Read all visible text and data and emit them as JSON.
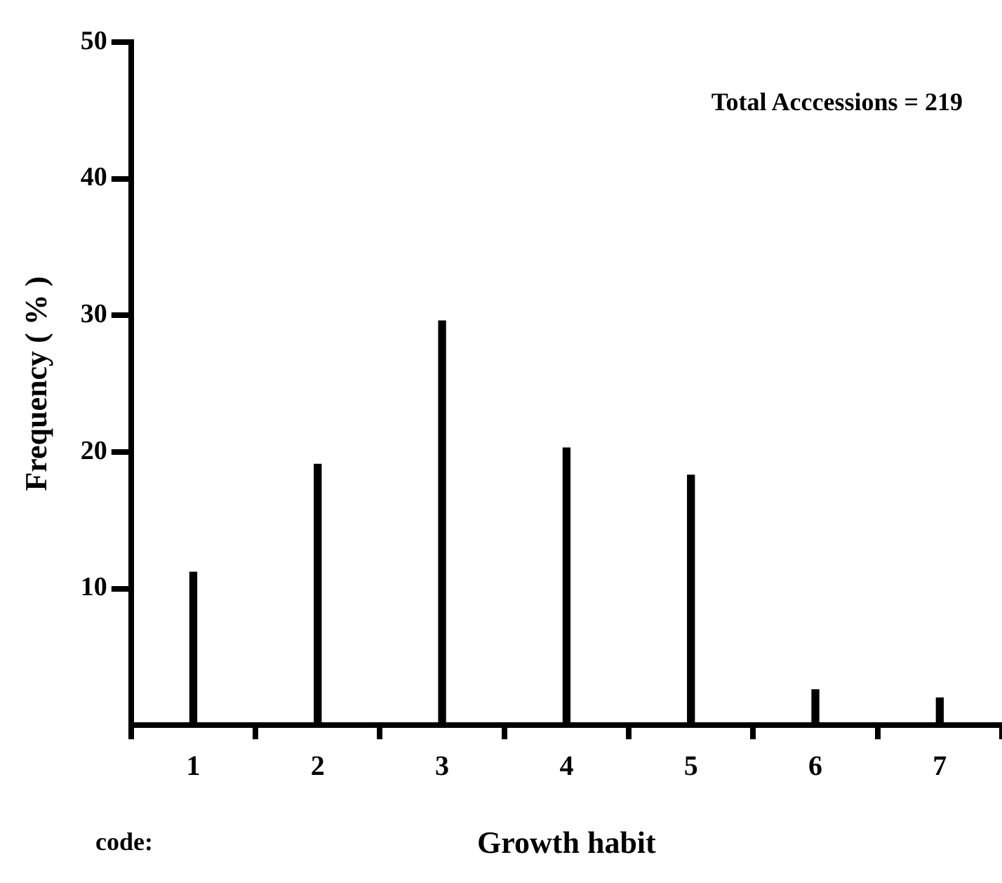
{
  "chart_data": {
    "type": "bar",
    "xlabel": "Growth habit",
    "ylabel": "Frequency ( % )",
    "annotations": [
      "Total Acccessions = 219",
      "code:"
    ],
    "categories": [
      "1",
      "2",
      "3",
      "4",
      "5",
      "6",
      "7"
    ],
    "values": [
      11.2,
      19.1,
      29.6,
      20.3,
      18.3,
      2.6,
      2.0
    ],
    "color": "#000000",
    "ylim": [
      0,
      50
    ],
    "yticks": [
      10,
      20,
      30,
      40,
      50
    ],
    "grid": false,
    "legend": false
  }
}
